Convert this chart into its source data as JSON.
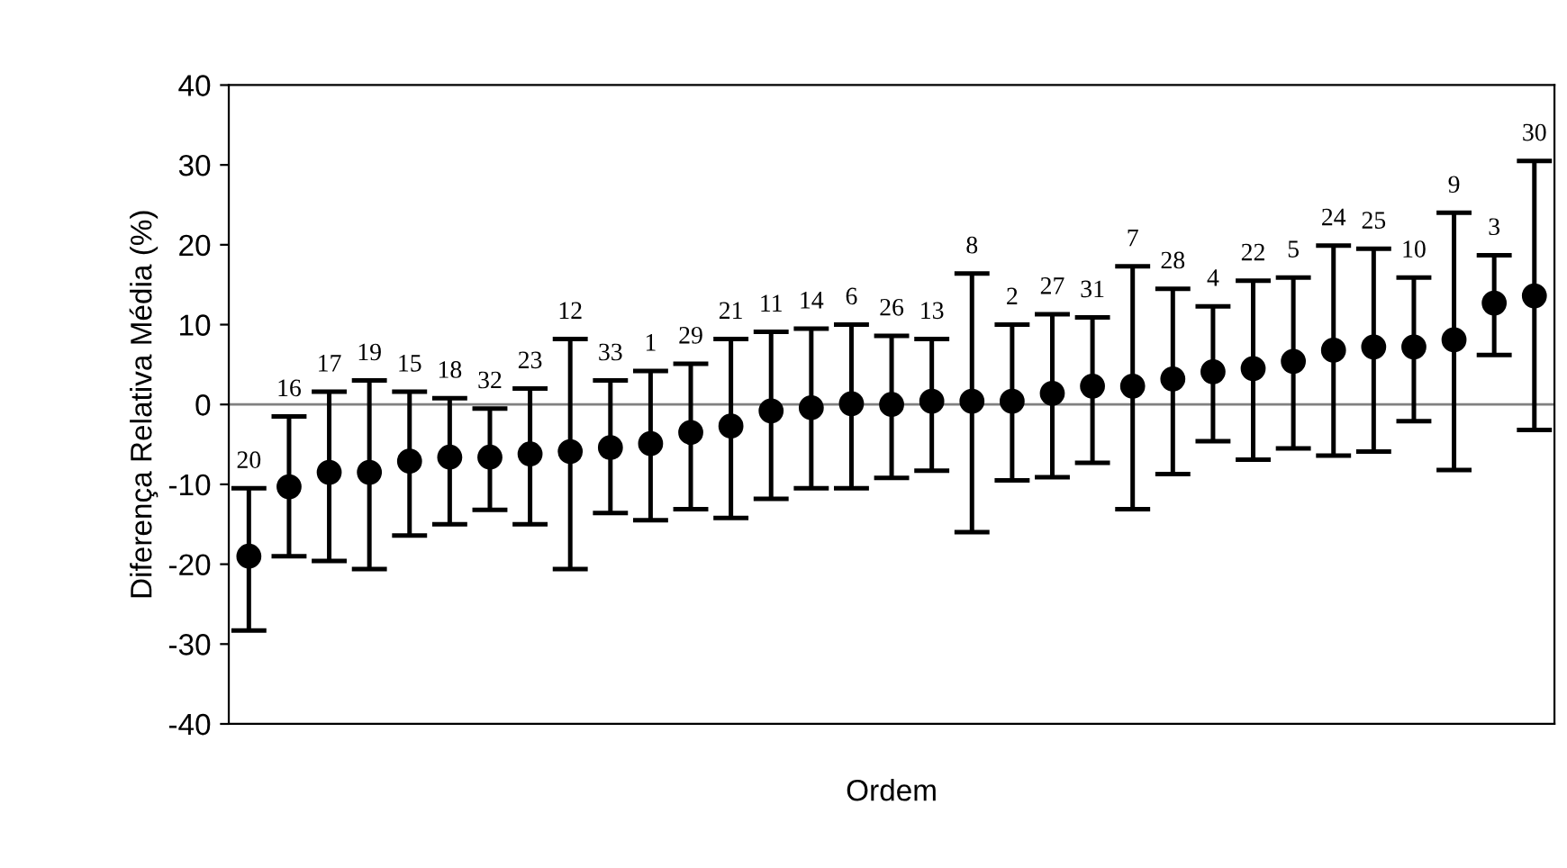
{
  "chart_data": {
    "type": "scatter",
    "xlabel": "Ordem",
    "ylabel": "Diferença Relativa Média (%)",
    "categories": [
      "20",
      "16",
      "17",
      "19",
      "15",
      "18",
      "32",
      "23",
      "12",
      "33",
      "1",
      "29",
      "21",
      "11",
      "14",
      "6",
      "26",
      "13",
      "8",
      "2",
      "27",
      "31",
      "7",
      "28",
      "4",
      "22",
      "5",
      "24",
      "25",
      "10",
      "9",
      "3",
      "30"
    ],
    "series": [
      {
        "color": "#000000",
        "values": [
          -19,
          -10.3,
          -8.5,
          -8.5,
          -7.1,
          -6.6,
          -6.6,
          -6.2,
          -5.9,
          -5.4,
          -4.9,
          -3.5,
          -2.7,
          -0.8,
          -0.4,
          0.1,
          0,
          0.4,
          0.4,
          0.4,
          1.4,
          2.3,
          2.3,
          3.2,
          4.1,
          4.5,
          5.4,
          6.8,
          7.2,
          7.2,
          8.1,
          12.7,
          13.6
        ],
        "errors": [
          [
            -28.3,
            -10.5
          ],
          [
            -19,
            -1.5
          ],
          [
            -19.6,
            1.6
          ],
          [
            -20.6,
            3
          ],
          [
            -16.4,
            1.6
          ],
          [
            -15,
            0.8
          ],
          [
            -13.2,
            -0.5
          ],
          [
            -15,
            2
          ],
          [
            -20.6,
            8.2
          ],
          [
            -13.6,
            3
          ],
          [
            -14.5,
            4.2
          ],
          [
            -13.1,
            5.1
          ],
          [
            -14.2,
            8.2
          ],
          [
            -11.8,
            9.1
          ],
          [
            -10.5,
            9.5
          ],
          [
            -10.5,
            10
          ],
          [
            -9.2,
            8.6
          ],
          [
            -8.3,
            8.2
          ],
          [
            -16,
            16.4
          ],
          [
            -9.5,
            10
          ],
          [
            -9.1,
            11.3
          ],
          [
            -7.3,
            10.9
          ],
          [
            -13.1,
            17.3
          ],
          [
            -8.7,
            14.5
          ],
          [
            -4.6,
            12.3
          ],
          [
            -6.9,
            15.5
          ],
          [
            -5.5,
            15.9
          ],
          [
            -6.4,
            19.9
          ],
          [
            -5.9,
            19.5
          ],
          [
            -2.1,
            15.9
          ],
          [
            -8.2,
            24
          ],
          [
            6.2,
            18.7
          ],
          [
            -3.2,
            30.5
          ]
        ]
      }
    ],
    "ylim": [
      -40,
      40
    ],
    "yticks": [
      -40,
      -30,
      -20,
      -10,
      0,
      10,
      20,
      30,
      40
    ],
    "ref_lines": [
      {
        "axis": "y",
        "value": 0,
        "color": "#808080"
      }
    ],
    "marker": "circle",
    "grid": false,
    "legend": false
  }
}
